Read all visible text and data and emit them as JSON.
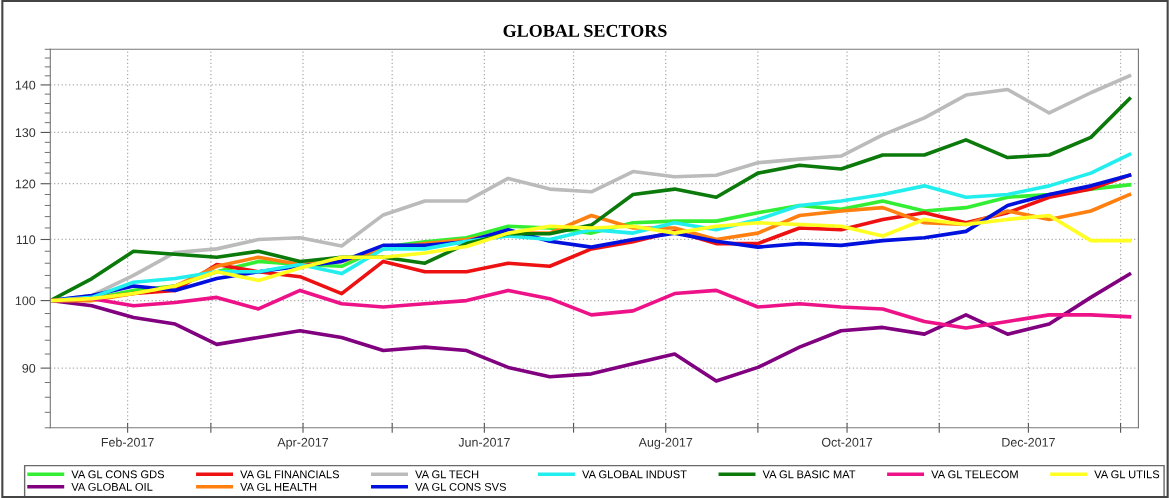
{
  "chart_data": {
    "type": "line",
    "title": "GLOBAL SECTORS",
    "x": [
      "2017-01-06",
      "2017-01-20",
      "2017-02-03",
      "2017-02-17",
      "2017-03-03",
      "2017-03-17",
      "2017-03-31",
      "2017-04-14",
      "2017-04-28",
      "2017-05-12",
      "2017-05-26",
      "2017-06-09",
      "2017-06-23",
      "2017-07-07",
      "2017-07-21",
      "2017-08-04",
      "2017-08-18",
      "2017-09-01",
      "2017-09-15",
      "2017-09-29",
      "2017-10-13",
      "2017-10-27",
      "2017-11-10",
      "2017-11-24",
      "2017-12-08",
      "2017-12-22",
      "2018-01-04"
    ],
    "series": [
      {
        "name": "VA GL CONS GDS",
        "color": "#33ee33",
        "values": [
          100,
          100.3,
          101.6,
          102.3,
          104.6,
          106.3,
          105.8,
          105.5,
          108.7,
          109.6,
          110.3,
          112.3,
          112,
          111.1,
          112.9,
          113.2,
          113.2,
          114.7,
          116,
          115.3,
          116.8,
          115,
          115.6,
          117.5,
          118,
          119,
          119.8
        ]
      },
      {
        "name": "VA GLOBAL OIL",
        "color": "#800080",
        "values": [
          100,
          99.2,
          97.4,
          96.4,
          93.4,
          94.4,
          95.4,
          94.4,
          92.5,
          93,
          92.5,
          90.1,
          88.8,
          89.2,
          90.6,
          92,
          88.2,
          90.1,
          93,
          95.4,
          95.9,
          94.9,
          97.8,
          94.9,
          96.4,
          100.5,
          104.2
        ]
      },
      {
        "name": "VA GL FINANCIALS",
        "color": "#ee1111",
        "values": [
          100,
          100.3,
          101.1,
          101.6,
          105.8,
          104.6,
          103.8,
          101.1,
          106.3,
          104.6,
          104.6,
          106,
          105.5,
          108.4,
          109.6,
          111.4,
          109.3,
          109.3,
          112,
          111.7,
          113.5,
          114.7,
          112.9,
          114.7,
          117.5,
          119,
          121.6
        ]
      },
      {
        "name": "VA GL HEALTH",
        "color": "#ff8010",
        "values": [
          100,
          100,
          101.1,
          102.3,
          105.5,
          107,
          105.8,
          106.3,
          108.4,
          109.3,
          110,
          111.1,
          111.1,
          114.2,
          112,
          112,
          110,
          111.1,
          114.2,
          115,
          115.6,
          112.9,
          112.6,
          115,
          113.5,
          115,
          118
        ]
      },
      {
        "name": "VA GL TECH",
        "color": "#bbbbbb",
        "values": [
          100,
          100.8,
          104,
          107.8,
          108.4,
          110,
          110.3,
          108.9,
          114.3,
          116.8,
          116.8,
          121,
          119,
          118.5,
          122.3,
          121.3,
          121.6,
          124,
          124.7,
          125.3,
          129.5,
          133,
          137.8,
          139,
          134,
          138.3,
          142
        ]
      },
      {
        "name": "VA GL CONS SVS",
        "color": "#0010dd",
        "values": [
          100,
          100.8,
          102.3,
          101.6,
          103.5,
          104.6,
          105.5,
          106.3,
          109,
          109,
          109.6,
          111.7,
          109.7,
          108.7,
          110,
          111.1,
          109.7,
          108.7,
          109.3,
          109,
          109.8,
          110.3,
          111.4,
          116,
          118,
          119.6,
          121.6
        ]
      },
      {
        "name": "VA GLOBAL INDUST",
        "color": "#22eeee",
        "values": [
          100,
          100.5,
          102.9,
          103.5,
          104.6,
          104.6,
          105.8,
          104.3,
          108.4,
          108.4,
          109.7,
          110.6,
          110,
          111.7,
          111.1,
          112.9,
          111.7,
          113.5,
          116,
          116.8,
          118,
          119.6,
          117.5,
          118,
          119.6,
          122,
          125.6
        ]
      },
      {
        "name": "VA GL BASIC MAT",
        "color": "#0b7a0b",
        "values": [
          100,
          103.5,
          108,
          107.5,
          107,
          108,
          106.3,
          107,
          107,
          106,
          109.3,
          111,
          111,
          112.5,
          118,
          119,
          117.5,
          122,
          123.5,
          122.8,
          125.5,
          125.5,
          128.5,
          125,
          125.5,
          129,
          137
        ]
      },
      {
        "name": "VA GL TELECOM",
        "color": "#ee1288",
        "values": [
          100,
          100.3,
          99.2,
          99.7,
          100.5,
          98.7,
          101.6,
          99.5,
          99,
          99.5,
          100,
          101.6,
          100.3,
          97.8,
          98.4,
          101.1,
          101.6,
          99,
          99.5,
          99,
          98.7,
          96.8,
          95.8,
          96.8,
          97.8,
          97.8,
          97.5
        ]
      },
      {
        "name": "VA GL UTILS",
        "color": "#ffff22",
        "values": [
          100,
          100.3,
          101.1,
          102.3,
          104.6,
          103.2,
          105.2,
          107,
          107,
          107.7,
          108.8,
          111.1,
          112.3,
          112,
          112.3,
          111.1,
          112.3,
          112.9,
          112.6,
          112.3,
          110.6,
          113.5,
          112.6,
          113.5,
          114.2,
          109.8,
          109.8
        ]
      }
    ],
    "log": true,
    "xlim": [
      "2017-01-06",
      "2018-01-07"
    ],
    "xticks": [
      {
        "value": "2017-02-01",
        "label": "Feb-2017"
      },
      {
        "value": "2017-03-01",
        "label": null
      },
      {
        "value": "2017-04-01",
        "label": "Apr-2017"
      },
      {
        "value": "2017-05-01",
        "label": null
      },
      {
        "value": "2017-06-01",
        "label": "Jun-2017"
      },
      {
        "value": "2017-07-01",
        "label": null
      },
      {
        "value": "2017-08-01",
        "label": "Aug-2017"
      },
      {
        "value": "2017-09-01",
        "label": null
      },
      {
        "value": "2017-10-01",
        "label": "Oct-2017"
      },
      {
        "value": "2017-11-01",
        "label": null
      },
      {
        "value": "2017-12-01",
        "label": "Dec-2017"
      },
      {
        "value": "2018-01-01",
        "label": null
      }
    ],
    "ylim": [
      82,
      148
    ],
    "yticks": [
      90,
      100,
      110,
      120,
      130,
      140
    ],
    "grid": true,
    "legend": "bottom",
    "line_style": "solid",
    "marker": "none"
  }
}
